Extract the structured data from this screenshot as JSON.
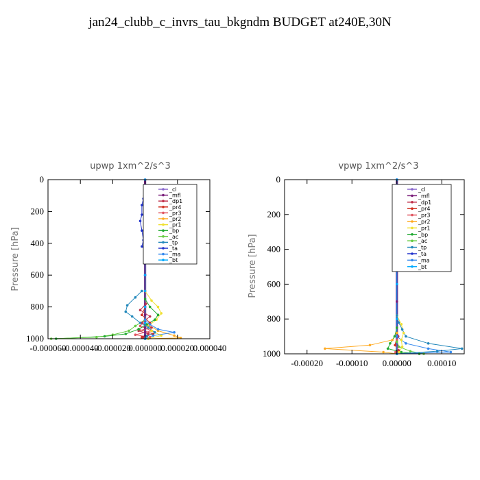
{
  "title": "jan24_clubb_c_invrs_tau_bkgndm  BUDGET at240E,30N",
  "chart_data": [
    {
      "type": "line",
      "title": "upwp   1xm^2/s^3",
      "ylabel": "Pressure [hPa]",
      "xlim": [
        -6e-05,
        4e-05
      ],
      "ylim": [
        1000,
        0
      ],
      "x_ticks": [
        -6e-05,
        -4e-05,
        -2e-05,
        0.0,
        2e-05,
        4e-05
      ],
      "x_tick_labels": [
        "-0.000060",
        "-0.000040",
        "-0.000020",
        "0.000000",
        "0.000020",
        "0.000040"
      ],
      "y_ticks": [
        0,
        200,
        400,
        600,
        800,
        1000
      ],
      "y_tick_labels": [
        "0",
        "200",
        "400",
        "600",
        "800",
        "1000"
      ],
      "legend_placement": "top-right",
      "series": [
        {
          "name": "_cl",
          "color": "#8866cc",
          "y": [
            0,
            100,
            200,
            300,
            400,
            500,
            600,
            700,
            800,
            850,
            900,
            930,
            960,
            980,
            1000
          ],
          "x": [
            0,
            0,
            0,
            0,
            0,
            0,
            0,
            0,
            0,
            0,
            0,
            0,
            0,
            0,
            0
          ]
        },
        {
          "name": "_mfl",
          "color": "#7a1f7a",
          "y": [
            0,
            100,
            200,
            300,
            400,
            500,
            600,
            700,
            800,
            850,
            900,
            930,
            960,
            980,
            1000
          ],
          "x": [
            0,
            0,
            0,
            0,
            0,
            0,
            0,
            0,
            0,
            0,
            0,
            0,
            0,
            0,
            0
          ]
        },
        {
          "name": "_dp1",
          "color": "#c0304a",
          "y": [
            700,
            780,
            820,
            860,
            900,
            930,
            950,
            970,
            990,
            1000
          ],
          "x": [
            0,
            5e-07,
            -3e-06,
            3e-06,
            -2e-06,
            4e-06,
            -4e-06,
            2e-06,
            -1e-06,
            0
          ]
        },
        {
          "name": "_pr4",
          "color": "#d03020",
          "y": [
            800,
            850,
            900,
            940,
            970,
            990,
            1000
          ],
          "x": [
            0,
            -2e-06,
            3e-06,
            -4e-06,
            5e-06,
            -2e-06,
            0
          ]
        },
        {
          "name": "_pr3",
          "color": "#e05560",
          "y": [
            880,
            920,
            950,
            975,
            990,
            1000
          ],
          "x": [
            0,
            -3e-06,
            4e-06,
            -6e-06,
            3e-06,
            0
          ]
        },
        {
          "name": "_pr2",
          "color": "#ffaa22",
          "y": [
            60,
            100,
            130,
            160,
            900,
            950,
            980,
            995,
            1000
          ],
          "x": [
            -5e-07,
            -5e-07,
            -5e-07,
            0,
            0,
            8e-06,
            1.8e-05,
            2.2e-05,
            2e-06
          ]
        },
        {
          "name": "_pr1",
          "color": "#f0e030",
          "y": [
            700,
            760,
            800,
            840,
            880,
            920,
            950,
            980,
            1000
          ],
          "x": [
            0,
            4e-06,
            8e-06,
            1e-05,
            7e-06,
            2e-06,
            4e-06,
            1e-05,
            2e-06
          ]
        },
        {
          "name": "_bp",
          "color": "#22aa33",
          "y": [
            750,
            800,
            850,
            880,
            910,
            940,
            970,
            985,
            1000
          ],
          "x": [
            0,
            3e-06,
            8e-06,
            6e-06,
            1e-06,
            -4e-06,
            -1.2e-05,
            -2.5e-05,
            -5.5e-05
          ]
        },
        {
          "name": "_ac",
          "color": "#66cc44",
          "y": [
            880,
            920,
            950,
            975,
            990,
            1000
          ],
          "x": [
            0,
            -6e-06,
            -1e-05,
            -2e-05,
            -3e-05,
            -5.8e-05
          ]
        },
        {
          "name": "_tp",
          "color": "#2288bb",
          "y": [
            700,
            740,
            790,
            830,
            860,
            900,
            930,
            960,
            985,
            1000
          ],
          "x": [
            -2e-06,
            -6e-06,
            -1.1e-05,
            -1.2e-05,
            -8e-06,
            -3e-06,
            2e-06,
            6e-06,
            1e-06,
            0
          ]
        },
        {
          "name": "_ta",
          "color": "#2233cc",
          "y": [
            80,
            120,
            160,
            220,
            260,
            320,
            380,
            420,
            440
          ],
          "x": [
            0,
            -1e-06,
            -2e-06,
            -2e-06,
            -3e-06,
            -2e-06,
            -1e-06,
            -2e-06,
            0
          ]
        },
        {
          "name": "_ma",
          "color": "#3388ee",
          "y": [
            880,
            910,
            940,
            960,
            980,
            1000
          ],
          "x": [
            0,
            3e-06,
            8e-06,
            1.8e-05,
            5e-06,
            0
          ]
        },
        {
          "name": "_bt",
          "color": "#00aaff",
          "y": [
            0,
            100,
            200,
            300,
            400,
            500,
            600,
            700,
            800,
            900,
            1000
          ],
          "x": [
            0,
            0,
            0,
            0,
            0,
            0,
            0,
            0,
            0,
            0,
            0
          ]
        }
      ]
    },
    {
      "type": "line",
      "title": "vpwp   1xm^2/s^3",
      "ylabel": "Pressure [hPa]",
      "xlim": [
        -0.00025,
        0.00015
      ],
      "ylim": [
        1000,
        0
      ],
      "x_ticks": [
        -0.0002,
        -0.0001,
        0.0,
        0.0001
      ],
      "x_tick_labels": [
        "-0.00020",
        "-0.00010",
        "0.00000",
        "0.00010"
      ],
      "y_ticks": [
        0,
        200,
        400,
        600,
        800,
        1000
      ],
      "y_tick_labels": [
        "0",
        "200",
        "400",
        "600",
        "800",
        "1000"
      ],
      "legend_placement": "top-right",
      "series": [
        {
          "name": "_cl",
          "color": "#8866cc",
          "y": [
            0,
            100,
            200,
            300,
            400,
            500,
            600,
            700,
            800,
            900,
            1000
          ],
          "x": [
            0,
            0,
            0,
            0,
            0,
            0,
            0,
            0,
            0,
            0,
            0
          ]
        },
        {
          "name": "_mfl",
          "color": "#7a1f7a",
          "y": [
            0,
            100,
            200,
            300,
            400,
            500,
            600,
            700,
            800,
            900,
            1000
          ],
          "x": [
            0,
            0,
            0,
            0,
            0,
            0,
            0,
            0,
            0,
            0,
            0
          ]
        },
        {
          "name": "_dp1",
          "color": "#c0304a",
          "y": [
            850,
            900,
            950,
            980,
            1000
          ],
          "x": [
            0,
            3e-06,
            -3e-06,
            4e-06,
            0
          ]
        },
        {
          "name": "_pr4",
          "color": "#d03020",
          "y": [
            900,
            950,
            985,
            1000
          ],
          "x": [
            0,
            -4e-06,
            4e-06,
            0
          ]
        },
        {
          "name": "_pr3",
          "color": "#e05560",
          "y": [
            920,
            960,
            990,
            1000
          ],
          "x": [
            0,
            4e-06,
            -3e-06,
            0
          ]
        },
        {
          "name": "_pr2",
          "color": "#ffaa22",
          "y": [
            880,
            920,
            950,
            970,
            990,
            1000
          ],
          "x": [
            0,
            -1e-05,
            -6e-05,
            -0.00016,
            -3e-05,
            0
          ]
        },
        {
          "name": "_pr1",
          "color": "#f0e030",
          "y": [
            780,
            830,
            880,
            920,
            960,
            990,
            1000
          ],
          "x": [
            0,
            1e-05,
            1.5e-05,
            1e-05,
            1.2e-05,
            5e-06,
            0
          ]
        },
        {
          "name": "_bp",
          "color": "#22aa33",
          "y": [
            850,
            900,
            940,
            970,
            990,
            1000
          ],
          "x": [
            0,
            -5e-06,
            -1.5e-05,
            -2e-05,
            1e-05,
            5e-05
          ]
        },
        {
          "name": "_ac",
          "color": "#66cc44",
          "y": [
            930,
            960,
            985,
            1000
          ],
          "x": [
            0,
            5e-06,
            3e-05,
            6e-05
          ]
        },
        {
          "name": "_tp",
          "color": "#2288bb",
          "y": [
            780,
            820,
            860,
            900,
            940,
            970,
            985,
            1000
          ],
          "x": [
            0,
            4e-06,
            1.2e-05,
            2e-05,
            7e-05,
            0.000145,
            9e-05,
            0
          ]
        },
        {
          "name": "_ta",
          "color": "#2233cc",
          "y": [
            0,
            200,
            400,
            600,
            800,
            900,
            1000
          ],
          "x": [
            0,
            0,
            0,
            0,
            0,
            0,
            0
          ]
        },
        {
          "name": "_ma",
          "color": "#3388ee",
          "y": [
            900,
            940,
            970,
            990,
            1000
          ],
          "x": [
            0,
            2e-05,
            7e-05,
            0.00012,
            0
          ]
        },
        {
          "name": "_bt",
          "color": "#00aaff",
          "y": [
            0,
            200,
            400,
            600,
            800,
            1000
          ],
          "x": [
            0,
            0,
            0,
            0,
            0,
            0
          ]
        }
      ]
    }
  ]
}
